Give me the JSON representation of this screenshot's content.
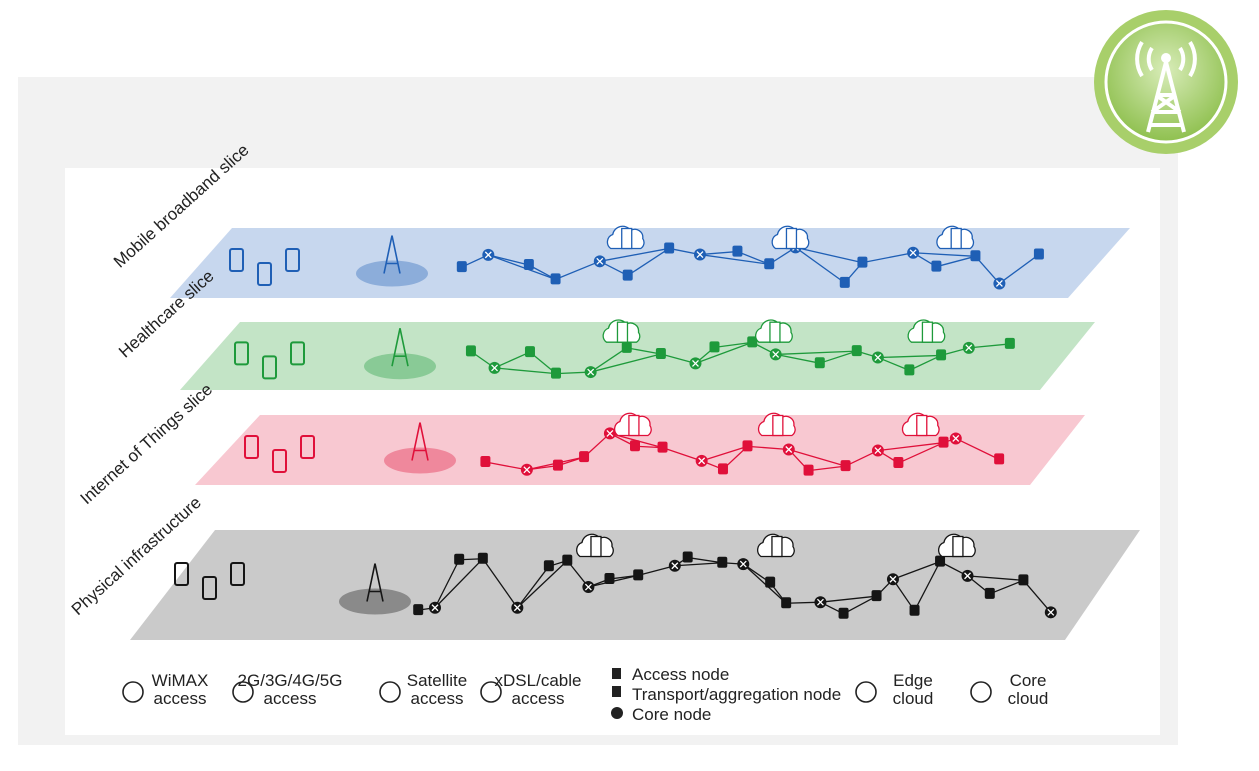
{
  "layers": [
    {
      "label": "Mobile broadband slice",
      "plane_color": "#c7d7ee",
      "node_color": "#1f5fb5"
    },
    {
      "label": "Healthcare slice",
      "plane_color": "#c3e4c6",
      "node_color": "#1e9a3b"
    },
    {
      "label": "Internet of Things slice",
      "plane_color": "#f8c8d1",
      "node_color": "#e0103a"
    },
    {
      "label": "Physical infrastructure",
      "plane_color": "#cacaca",
      "node_color": "#151515"
    }
  ],
  "legend": {
    "items": [
      {
        "lines": [
          "WiMAX",
          "access"
        ]
      },
      {
        "lines": [
          "2G/3G/4G/5G",
          "access"
        ]
      },
      {
        "lines": [
          "Satellite",
          "access"
        ]
      },
      {
        "lines": [
          "xDSL/cable",
          "access"
        ]
      },
      {
        "lines": [
          "Access node",
          "Transport/aggregation node",
          "Core node"
        ]
      },
      {
        "lines": [
          "Edge",
          "cloud"
        ]
      },
      {
        "lines": [
          "Core",
          "cloud"
        ]
      }
    ]
  }
}
